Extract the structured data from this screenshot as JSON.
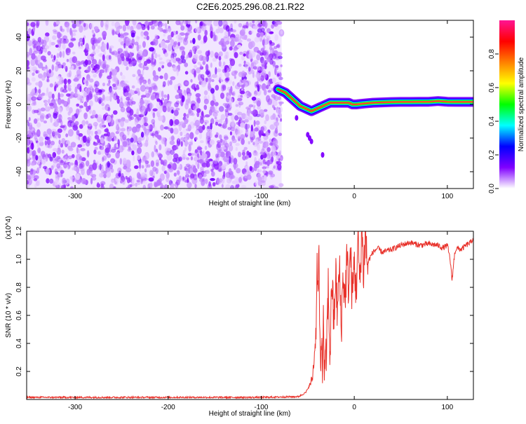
{
  "title": "C2E6.2025.296.08.21.R22",
  "chart_data": [
    {
      "type": "heatmap",
      "xlabel": "Height of straight line (km)",
      "ylabel": "Frequency (Hz)",
      "xlim": [
        -352,
        128
      ],
      "ylim": [
        -50,
        50
      ],
      "x_ticks": [
        -300,
        -200,
        -100,
        0,
        100
      ],
      "y_ticks": [
        -40,
        -20,
        0,
        20,
        40
      ],
      "noise_region_x": [
        -352,
        -78
      ],
      "signal_trace": {
        "x": [
          -82,
          -78,
          -74,
          -70,
          -66,
          -62,
          -58,
          -54,
          -50,
          -46,
          -42,
          -38,
          -34,
          -30,
          -26,
          -22,
          -18,
          -14,
          -10,
          -6,
          -2,
          2,
          10,
          20,
          30,
          40,
          50,
          60,
          70,
          80,
          90,
          100,
          110,
          120,
          128
        ],
        "y": [
          9,
          8,
          7,
          5,
          3,
          1,
          -1,
          -2,
          -3,
          -4,
          -3,
          -2,
          -1,
          0,
          1,
          1,
          1,
          1,
          1,
          1,
          0,
          0,
          0.5,
          1,
          1.2,
          1.4,
          1.5,
          1.5,
          1.6,
          1.6,
          2,
          1.6,
          1.5,
          1.5,
          1.5
        ]
      },
      "colorbar": {
        "label": "Normalized spectral amplitude",
        "range": [
          0,
          1
        ],
        "ticks": [
          0.0,
          0.2,
          0.4,
          0.6,
          0.8
        ],
        "tick_labels": [
          "0.0",
          "0.2",
          "0.4",
          "0.6",
          "0.8"
        ],
        "colors": [
          "#ffffff",
          "#8000ff",
          "#0000ff",
          "#00ffff",
          "#00ff00",
          "#ffff00",
          "#ff8000",
          "#ff0000",
          "#ff1493"
        ]
      },
      "grid": false
    },
    {
      "type": "line",
      "xlabel": "Height of straight line (km)",
      "ylabel": "SNR (10 * v/v)",
      "y_multiplier": "(x10^4)",
      "xlim": [
        -352,
        128
      ],
      "ylim": [
        0,
        1.2
      ],
      "x_ticks": [
        -300,
        -200,
        -100,
        0,
        100
      ],
      "y_ticks": [
        0.2,
        0.4,
        0.6,
        0.8,
        1.0,
        1.2
      ],
      "y_tick_labels": [
        "0.2",
        "0.4",
        "0.6",
        "0.8",
        "1.0",
        "1.2"
      ],
      "color": "#e8312a",
      "series": [
        {
          "x": [
            -352,
            -300,
            -200,
            -100,
            -60,
            -52,
            -48,
            -45,
            -43,
            -41,
            -40,
            -39,
            -38,
            -37,
            -36,
            -35,
            -34,
            -33,
            -32,
            -30,
            -28,
            -26,
            -24,
            -22,
            -20,
            -18,
            -16,
            -14,
            -12,
            -10,
            -8,
            -6,
            -4,
            -2,
            0,
            2,
            4,
            6,
            8,
            10,
            12,
            14,
            16,
            20,
            25,
            30,
            40,
            50,
            60,
            70,
            80,
            90,
            95,
            100,
            103,
            105,
            108,
            110,
            115,
            120,
            125,
            128
          ],
          "y": [
            0.015,
            0.015,
            0.015,
            0.015,
            0.02,
            0.05,
            0.1,
            0.15,
            0.3,
            0.5,
            1.0,
            0.7,
            1.1,
            0.4,
            0.15,
            0.5,
            0.2,
            0.6,
            0.15,
            0.3,
            0.8,
            0.3,
            0.9,
            0.5,
            0.9,
            0.6,
            0.95,
            0.5,
            0.9,
            0.7,
            1.0,
            0.8,
            1.05,
            0.7,
            1.0,
            0.75,
            1.15,
            0.8,
            1.22,
            0.9,
            1.2,
            0.95,
            1.0,
            1.05,
            1.08,
            1.05,
            1.07,
            1.1,
            1.12,
            1.1,
            1.11,
            1.1,
            1.08,
            1.1,
            1.0,
            0.85,
            1.05,
            1.08,
            1.07,
            1.1,
            1.12,
            1.15
          ]
        }
      ],
      "grid": false
    }
  ]
}
